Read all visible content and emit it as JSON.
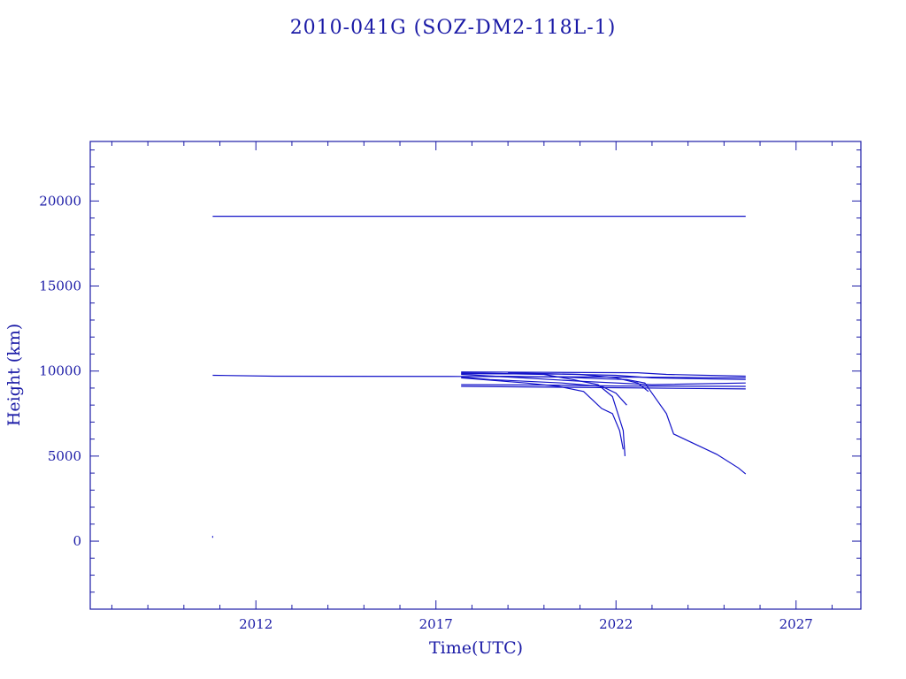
{
  "chart_data": {
    "type": "line",
    "title": "2010-041G (SOZ-DM2-118L-1)",
    "xlabel": "Time(UTC)",
    "ylabel": "Height (km)",
    "xlim": [
      2007.4,
      2028.8
    ],
    "ylim": [
      -4000,
      23500
    ],
    "xticks": [
      2012,
      2017,
      2022,
      2027
    ],
    "xtick_labels": [
      "2012",
      "2017",
      "2022",
      "2027"
    ],
    "yticks": [
      0,
      5000,
      10000,
      15000,
      20000
    ],
    "ytick_labels": [
      "0",
      "5000",
      "10000",
      "15000",
      "20000"
    ],
    "x_minor_step": 1,
    "y_minor_step": 1000,
    "grid": false,
    "legend": "none",
    "series": [
      {
        "x": [
          2010.8,
          2025.6
        ],
        "y": [
          19100,
          19100
        ]
      },
      {
        "x": [
          2010.8,
          2012.5,
          2017.7,
          2022.8,
          2025.6
        ],
        "y": [
          9750,
          9700,
          9680,
          9640,
          9600
        ]
      },
      {
        "x": [
          2017.7,
          2022.6,
          2023.4,
          2025.6
        ],
        "y": [
          9950,
          9900,
          9800,
          9700
        ]
      },
      {
        "x": [
          2017.7,
          2020.5,
          2022.0,
          2023.0,
          2025.6
        ],
        "y": [
          9850,
          9820,
          9750,
          9600,
          9500
        ]
      },
      {
        "x": [
          2017.7,
          2020.0,
          2022.0,
          2025.6
        ],
        "y": [
          9200,
          9180,
          9120,
          9100
        ]
      },
      {
        "x": [
          2017.7,
          2025.6
        ],
        "y": [
          9100,
          8950
        ]
      },
      {
        "x": [
          2017.7,
          2019.0,
          2021.0,
          2023.0,
          2025.6
        ],
        "y": [
          9800,
          9650,
          9400,
          9200,
          9300
        ]
      },
      {
        "x": [
          2017.7,
          2018.5,
          2020.5,
          2021.6,
          2022.0,
          2022.3
        ],
        "y": [
          9650,
          9500,
          9300,
          9100,
          8700,
          8000
        ]
      },
      {
        "x": [
          2017.7,
          2020.0,
          2020.8,
          2021.5,
          2021.9,
          2022.2,
          2022.25
        ],
        "y": [
          9900,
          9800,
          9500,
          9200,
          8500,
          6500,
          5000
        ]
      },
      {
        "x": [
          2017.7,
          2019.5,
          2020.4,
          2021.1,
          2021.6,
          2021.9,
          2022.1,
          2022.2
        ],
        "y": [
          9600,
          9300,
          9100,
          8800,
          7800,
          7500,
          6500,
          5400
        ]
      },
      {
        "x": [
          2018.5,
          2020.5,
          2021.5,
          2022.3,
          2022.8,
          2023.0,
          2023.4,
          2023.6,
          2024.2,
          2024.8,
          2025.4,
          2025.6
        ],
        "y": [
          9700,
          9650,
          9550,
          9500,
          9300,
          8700,
          7500,
          6300,
          5700,
          5100,
          4300,
          3950
        ]
      },
      {
        "x": [
          2019.0,
          2021.0,
          2022.0,
          2022.6,
          2022.9
        ],
        "y": [
          9900,
          9800,
          9600,
          9300,
          8800
        ]
      },
      {
        "x": [
          2010.8,
          2010.8
        ],
        "y": [
          200,
          300
        ]
      }
    ]
  }
}
